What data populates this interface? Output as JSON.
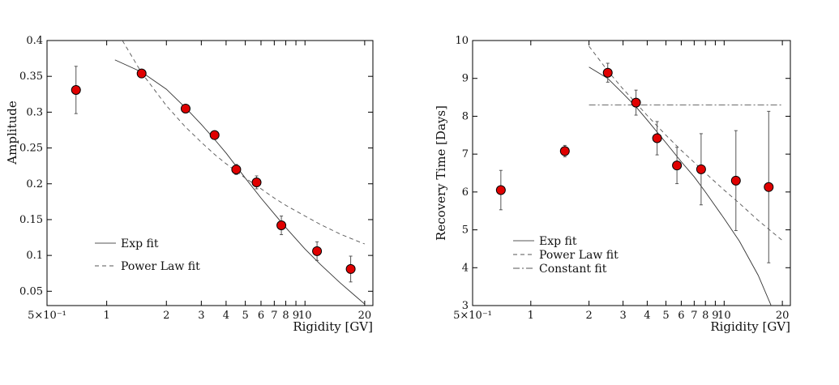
{
  "chart_data": [
    {
      "type": "scatter",
      "title": "",
      "xlabel": "Rigidity [GV]",
      "ylabel": "Amplitude",
      "xscale": "log",
      "xlim": [
        0.5,
        22
      ],
      "ylim": [
        0.03,
        0.4
      ],
      "xticks": [
        {
          "v": 0.5,
          "label": "5×10⁻¹"
        },
        {
          "v": 1,
          "label": "1"
        },
        {
          "v": 2,
          "label": "2"
        },
        {
          "v": 3,
          "label": "3"
        },
        {
          "v": 4,
          "label": "4"
        },
        {
          "v": 5,
          "label": "5"
        },
        {
          "v": 6,
          "label": "6"
        },
        {
          "v": 7,
          "label": "7"
        },
        {
          "v": 8,
          "label": "8"
        },
        {
          "v": 9,
          "label": "9"
        },
        {
          "v": 10,
          "label": "10"
        },
        {
          "v": 20,
          "label": "20"
        }
      ],
      "yticks": [
        {
          "v": 0.05,
          "label": "0.05"
        },
        {
          "v": 0.1,
          "label": "0.1"
        },
        {
          "v": 0.15,
          "label": "0.15"
        },
        {
          "v": 0.2,
          "label": "0.2"
        },
        {
          "v": 0.25,
          "label": "0.25"
        },
        {
          "v": 0.3,
          "label": "0.3"
        },
        {
          "v": 0.35,
          "label": "0.35"
        },
        {
          "v": 0.4,
          "label": "0.4"
        }
      ],
      "points": [
        {
          "x": 0.7,
          "y": 0.331,
          "err": 0.033
        },
        {
          "x": 1.5,
          "y": 0.354,
          "err": 0.004
        },
        {
          "x": 2.5,
          "y": 0.305,
          "err": 0.004
        },
        {
          "x": 3.5,
          "y": 0.268,
          "err": 0.004
        },
        {
          "x": 4.5,
          "y": 0.22,
          "err": 0.007
        },
        {
          "x": 5.7,
          "y": 0.202,
          "err": 0.009
        },
        {
          "x": 7.6,
          "y": 0.142,
          "err": 0.013
        },
        {
          "x": 11.5,
          "y": 0.106,
          "err": 0.013
        },
        {
          "x": 17,
          "y": 0.081,
          "err": 0.018
        }
      ],
      "series": [
        {
          "name": "Exp fit",
          "style": "solid",
          "x": [
            1.1,
            1.5,
            2,
            2.5,
            3,
            3.5,
            4,
            5,
            6,
            7,
            8,
            10,
            12,
            15,
            18,
            20
          ],
          "y": [
            0.373,
            0.356,
            0.332,
            0.306,
            0.283,
            0.262,
            0.243,
            0.208,
            0.18,
            0.158,
            0.139,
            0.109,
            0.087,
            0.062,
            0.043,
            0.032
          ]
        },
        {
          "name": "Power Law fit",
          "style": "dashed",
          "x": [
            1.2,
            1.5,
            2,
            2.5,
            3,
            3.5,
            4,
            5,
            6,
            7,
            8,
            10,
            12,
            15,
            18,
            20
          ],
          "y": [
            0.4,
            0.355,
            0.309,
            0.279,
            0.258,
            0.241,
            0.228,
            0.208,
            0.193,
            0.18,
            0.17,
            0.155,
            0.143,
            0.13,
            0.121,
            0.116
          ]
        }
      ],
      "legend": [
        {
          "label": "Exp fit",
          "style": "solid"
        },
        {
          "label": "Power Law fit",
          "style": "dashed"
        }
      ],
      "legend_position": "bottom-left",
      "grid": false
    },
    {
      "type": "scatter",
      "title": "",
      "xlabel": "Rigidity [GV]",
      "ylabel": "Recovery Time [Days]",
      "xscale": "log",
      "xlim": [
        0.5,
        22
      ],
      "ylim": [
        3,
        10
      ],
      "xticks": [
        {
          "v": 0.5,
          "label": "5×10⁻¹"
        },
        {
          "v": 1,
          "label": "1"
        },
        {
          "v": 2,
          "label": "2"
        },
        {
          "v": 3,
          "label": "3"
        },
        {
          "v": 4,
          "label": "4"
        },
        {
          "v": 5,
          "label": "5"
        },
        {
          "v": 6,
          "label": "6"
        },
        {
          "v": 7,
          "label": "7"
        },
        {
          "v": 8,
          "label": "8"
        },
        {
          "v": 9,
          "label": "9"
        },
        {
          "v": 10,
          "label": "10"
        },
        {
          "v": 20,
          "label": "20"
        }
      ],
      "yticks": [
        {
          "v": 3,
          "label": "3"
        },
        {
          "v": 4,
          "label": "4"
        },
        {
          "v": 5,
          "label": "5"
        },
        {
          "v": 6,
          "label": "6"
        },
        {
          "v": 7,
          "label": "7"
        },
        {
          "v": 8,
          "label": "8"
        },
        {
          "v": 9,
          "label": "9"
        },
        {
          "v": 10,
          "label": "10"
        }
      ],
      "points": [
        {
          "x": 0.7,
          "y": 6.05,
          "err": 0.52
        },
        {
          "x": 1.5,
          "y": 7.08,
          "err": 0.15
        },
        {
          "x": 2.5,
          "y": 9.15,
          "err": 0.25
        },
        {
          "x": 3.5,
          "y": 8.36,
          "err": 0.33
        },
        {
          "x": 4.5,
          "y": 7.42,
          "err": 0.44
        },
        {
          "x": 5.7,
          "y": 6.7,
          "err": 0.48
        },
        {
          "x": 7.6,
          "y": 6.6,
          "err": 0.94
        },
        {
          "x": 11.5,
          "y": 6.3,
          "err": 1.32
        },
        {
          "x": 17,
          "y": 6.13,
          "err": 2.0
        }
      ],
      "series": [
        {
          "name": "Exp fit",
          "style": "solid",
          "x": [
            2,
            2.5,
            3,
            3.5,
            4,
            5,
            6,
            7,
            8,
            10,
            12,
            15,
            17.5
          ],
          "y": [
            9.3,
            9.0,
            8.6,
            8.25,
            7.9,
            7.3,
            6.8,
            6.4,
            6.0,
            5.3,
            4.7,
            3.8,
            3.0
          ]
        },
        {
          "name": "Power Law fit",
          "style": "dashed",
          "x": [
            2,
            2.5,
            3,
            3.5,
            4,
            5,
            6,
            7,
            8,
            10,
            12,
            15,
            20
          ],
          "y": [
            9.85,
            9.2,
            8.72,
            8.35,
            8.02,
            7.5,
            7.1,
            6.78,
            6.5,
            6.05,
            5.7,
            5.25,
            4.72
          ]
        },
        {
          "name": "Constant fit",
          "style": "dashdot",
          "x": [
            2,
            20
          ],
          "y": [
            8.3,
            8.3
          ]
        }
      ],
      "legend": [
        {
          "label": "Exp fit",
          "style": "solid"
        },
        {
          "label": "Power Law fit",
          "style": "dashed"
        },
        {
          "label": "Constant fit",
          "style": "dashdot"
        }
      ],
      "legend_position": "bottom-left",
      "grid": false
    }
  ]
}
